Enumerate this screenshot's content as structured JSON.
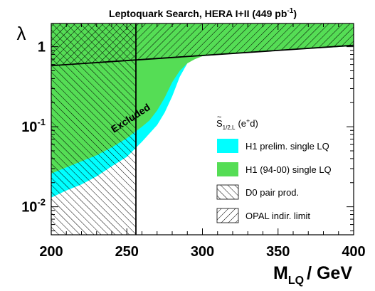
{
  "chart_data": {
    "type": "area",
    "title_main": "Leptoquark Search, HERA I+II (449 pb",
    "title_sup": "-1",
    "title_end": ")",
    "xlabel_main": "M",
    "xlabel_sub": "LQ",
    "xlabel_end": "/ GeV",
    "ylabel": "λ",
    "xlim": [
      200,
      400
    ],
    "ylim_log10": [
      -2.35,
      0.29
    ],
    "x_scale": "linear",
    "y_scale": "log",
    "x_ticks": [
      200,
      250,
      300,
      350,
      400
    ],
    "y_ticks": [
      {
        "value": 1,
        "label_base": "1",
        "label_exp": ""
      },
      {
        "value": 0.1,
        "label_base": "10",
        "label_exp": "-1"
      },
      {
        "value": 0.01,
        "label_base": "10",
        "label_exp": "-2"
      }
    ],
    "legend_title_main": "S",
    "legend_title_sub": "1/2,L",
    "legend_title_rest_pre": "(e",
    "legend_title_rest_sup": "+",
    "legend_title_rest_post": "d)",
    "legend": [
      {
        "label": "H1 prelim. single LQ",
        "color": "#00ffff",
        "style": "fill"
      },
      {
        "label": "H1 (94-00) single LQ",
        "color": "#55dd55",
        "style": "fill"
      },
      {
        "label": "D0 pair prod.",
        "style": "cross-hatch"
      },
      {
        "label": "OPAL indir. limit",
        "style": "hatch"
      }
    ],
    "annotation": "Excluded",
    "series": [
      {
        "name": "H1 prelim. single LQ",
        "color": "#00ffff",
        "x": [
          200,
          210,
          220,
          230,
          240,
          250,
          260,
          270,
          275,
          280,
          285,
          290,
          295,
          300,
          320,
          350,
          400
        ],
        "y": [
          0.013,
          0.016,
          0.019,
          0.024,
          0.032,
          0.042,
          0.065,
          0.105,
          0.15,
          0.24,
          0.42,
          0.62,
          0.72,
          0.76,
          0.82,
          0.89,
          1.02
        ]
      },
      {
        "name": "H1 (94-00) single LQ",
        "color": "#55dd55",
        "x": [
          200,
          210,
          220,
          230,
          240,
          250,
          255,
          260,
          265,
          270,
          275,
          280,
          285,
          290,
          295,
          300,
          320,
          350,
          400
        ],
        "y": [
          0.026,
          0.031,
          0.037,
          0.044,
          0.055,
          0.072,
          0.085,
          0.1,
          0.12,
          0.16,
          0.23,
          0.36,
          0.5,
          0.62,
          0.7,
          0.76,
          0.82,
          0.89,
          1.02
        ]
      },
      {
        "name": "OPAL indir. limit",
        "x": [
          200,
          400
        ],
        "y": [
          0.58,
          1.04
        ]
      },
      {
        "name": "D0 pair prod.",
        "x": [
          256,
          256
        ],
        "y": [
          0.0045,
          1.95
        ]
      }
    ]
  }
}
